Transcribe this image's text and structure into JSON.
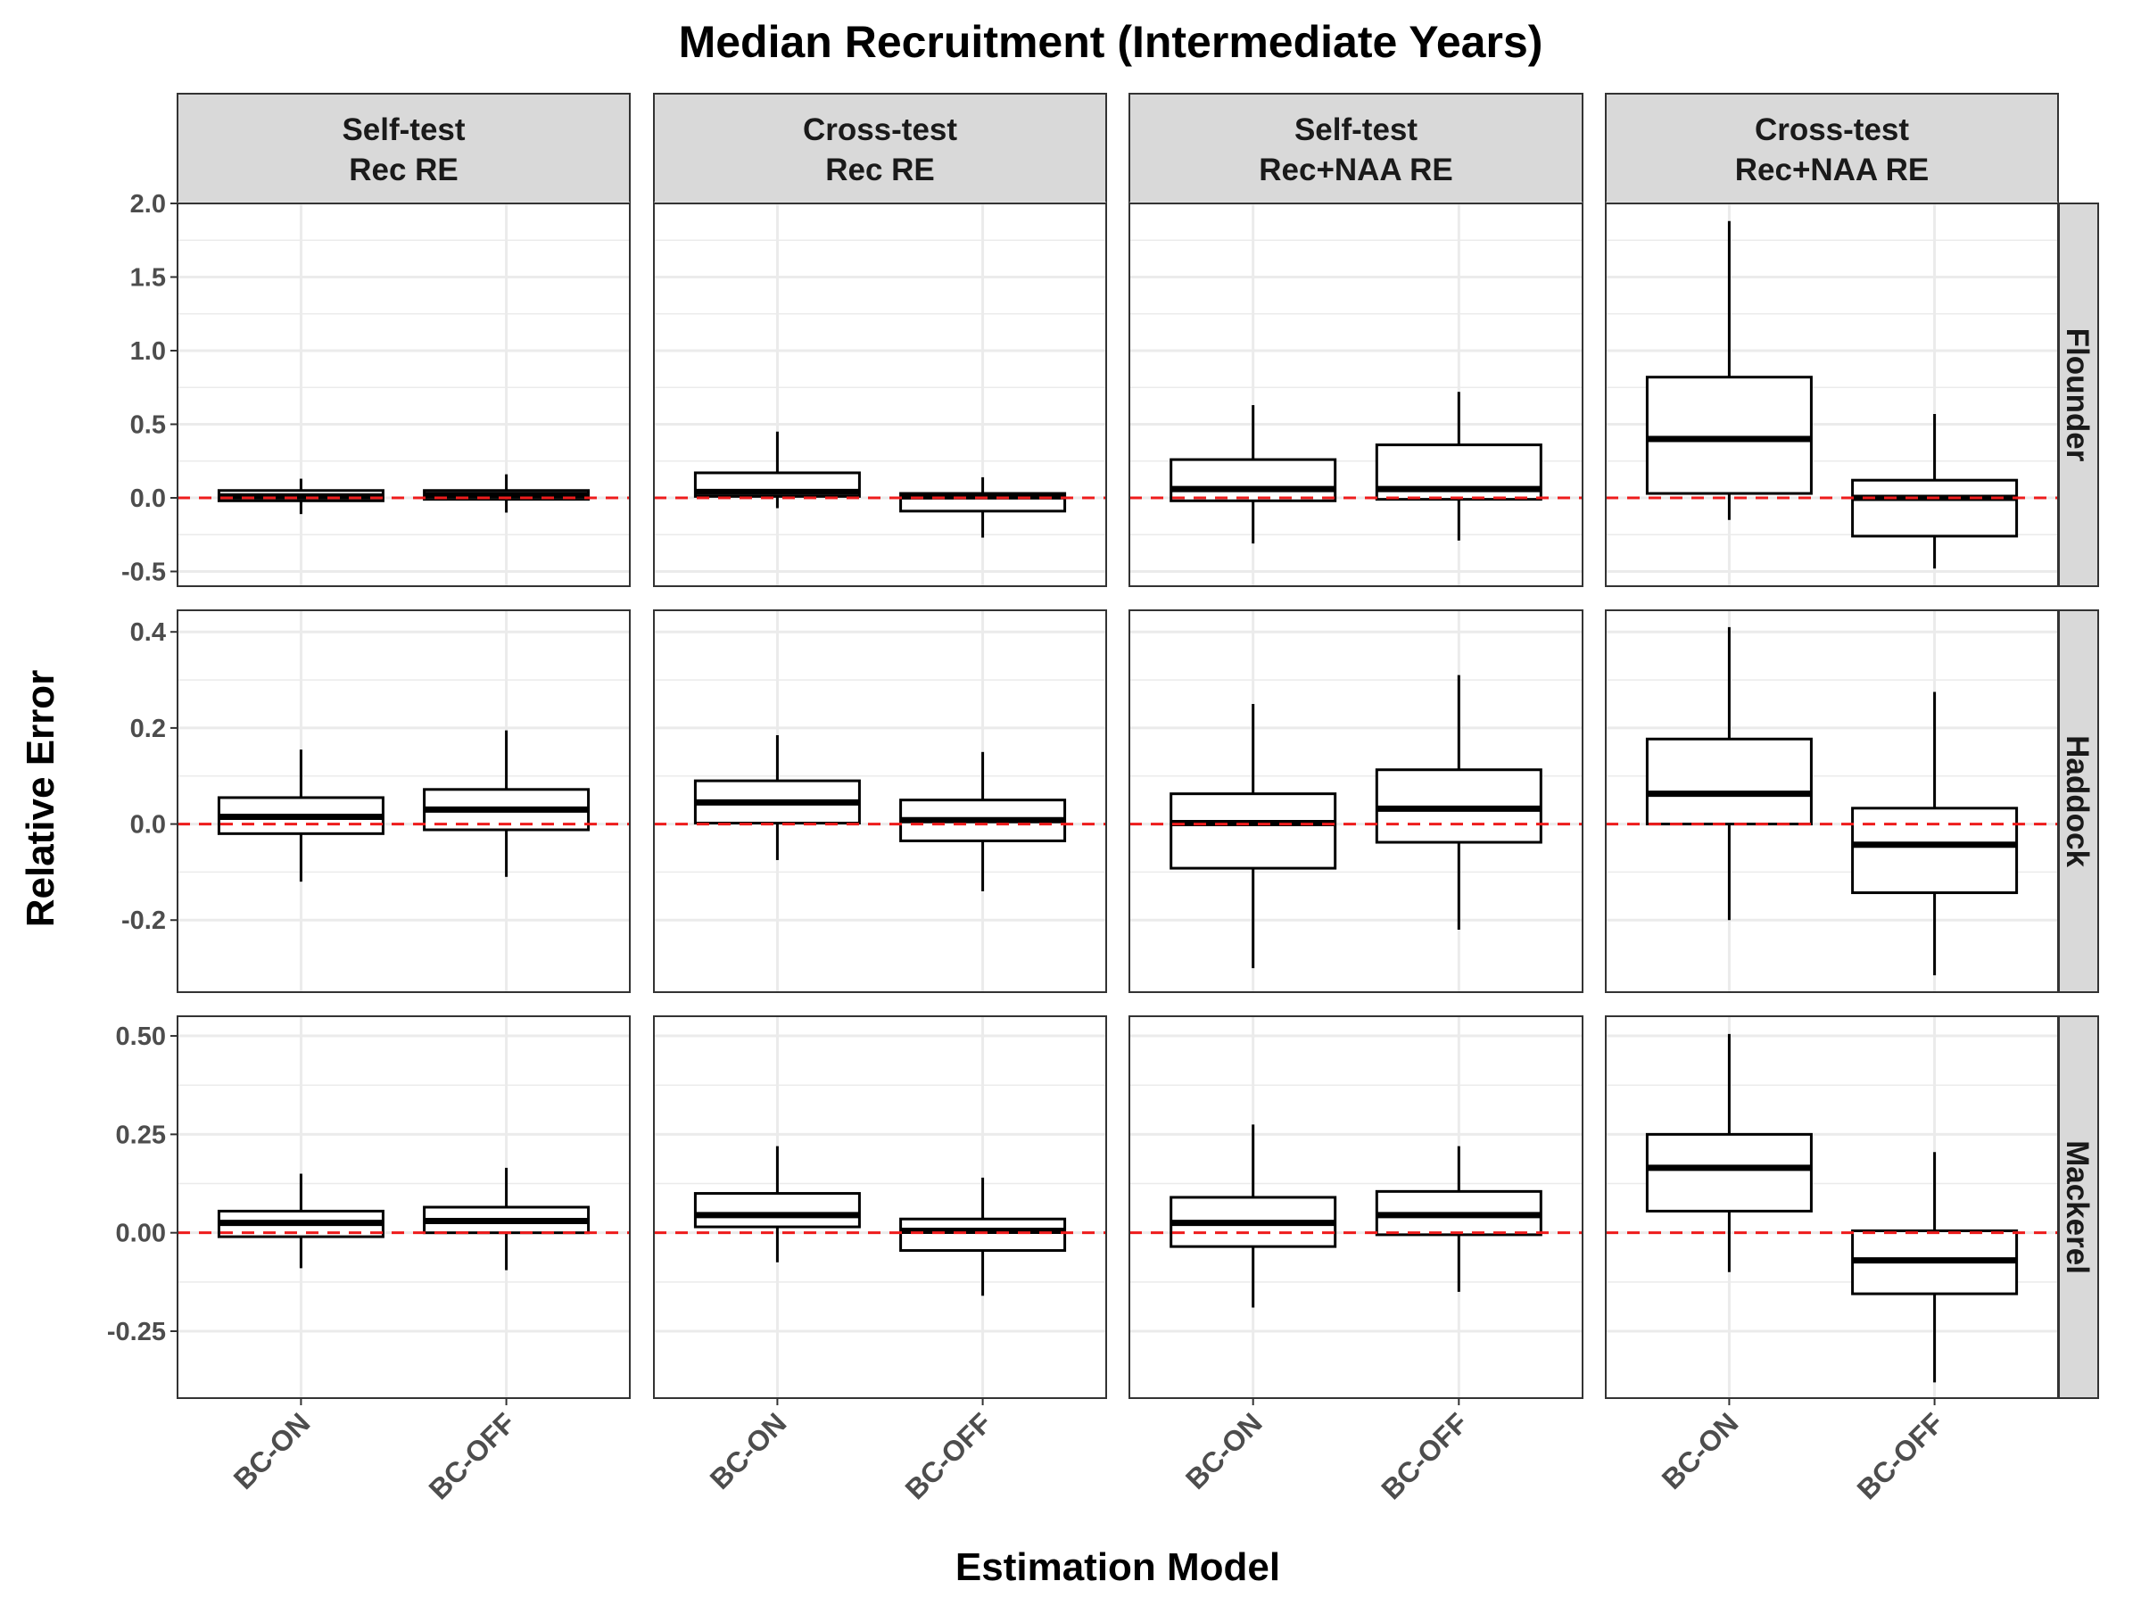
{
  "chart_data": {
    "type": "boxplot",
    "title": "Median Recruitment (Intermediate Years)",
    "xlabel": "Estimation Model",
    "ylabel": "Relative Error",
    "categories": [
      "BC-ON",
      "BC-OFF"
    ],
    "columns": [
      [
        "Self-test",
        "Rec RE"
      ],
      [
        "Cross-test",
        "Rec RE"
      ],
      [
        "Self-test",
        "Rec+NAA RE"
      ],
      [
        "Cross-test",
        "Rec+NAA RE"
      ]
    ],
    "rows": [
      {
        "name": "Flounder",
        "ylim": [
          -0.6,
          2.0
        ],
        "ticks": [
          "-0.5",
          "0.0",
          "0.5",
          "1.0",
          "1.5",
          "2.0"
        ],
        "panels": [
          [
            {
              "wlo": -0.11,
              "q1": -0.02,
              "med": 0.01,
              "q3": 0.05,
              "whi": 0.13
            },
            {
              "wlo": -0.1,
              "q1": -0.01,
              "med": 0.02,
              "q3": 0.05,
              "whi": 0.16
            }
          ],
          [
            {
              "wlo": -0.07,
              "q1": 0.01,
              "med": 0.04,
              "q3": 0.17,
              "whi": 0.45
            },
            {
              "wlo": -0.27,
              "q1": -0.09,
              "med": 0.01,
              "q3": 0.03,
              "whi": 0.14
            }
          ],
          [
            {
              "wlo": -0.31,
              "q1": -0.02,
              "med": 0.06,
              "q3": 0.26,
              "whi": 0.63
            },
            {
              "wlo": -0.29,
              "q1": -0.01,
              "med": 0.06,
              "q3": 0.36,
              "whi": 0.72
            }
          ],
          [
            {
              "wlo": -0.15,
              "q1": 0.03,
              "med": 0.4,
              "q3": 0.82,
              "whi": 1.88
            },
            {
              "wlo": -0.48,
              "q1": -0.26,
              "med": 0.0,
              "q3": 0.12,
              "whi": 0.57
            }
          ]
        ]
      },
      {
        "name": "Haddock",
        "ylim": [
          -0.35,
          0.445
        ],
        "ticks": [
          "-0.2",
          "0.0",
          "0.2",
          "0.4"
        ],
        "panels": [
          [
            {
              "wlo": -0.12,
              "q1": -0.02,
              "med": 0.015,
              "q3": 0.055,
              "whi": 0.155
            },
            {
              "wlo": -0.11,
              "q1": -0.012,
              "med": 0.03,
              "q3": 0.072,
              "whi": 0.195
            }
          ],
          [
            {
              "wlo": -0.075,
              "q1": 0.002,
              "med": 0.045,
              "q3": 0.09,
              "whi": 0.185
            },
            {
              "wlo": -0.14,
              "q1": -0.035,
              "med": 0.008,
              "q3": 0.05,
              "whi": 0.15
            }
          ],
          [
            {
              "wlo": -0.3,
              "q1": -0.092,
              "med": 0.002,
              "q3": 0.063,
              "whi": 0.25
            },
            {
              "wlo": -0.22,
              "q1": -0.038,
              "med": 0.032,
              "q3": 0.113,
              "whi": 0.31
            }
          ],
          [
            {
              "wlo": -0.2,
              "q1": 0.0,
              "med": 0.063,
              "q3": 0.177,
              "whi": 0.41
            },
            {
              "wlo": -0.315,
              "q1": -0.143,
              "med": -0.043,
              "q3": 0.033,
              "whi": 0.275
            }
          ]
        ]
      },
      {
        "name": "Mackerel",
        "ylim": [
          -0.42,
          0.55
        ],
        "ticks": [
          "-0.25",
          "0.00",
          "0.25",
          "0.50"
        ],
        "panels": [
          [
            {
              "wlo": -0.09,
              "q1": -0.01,
              "med": 0.025,
              "q3": 0.055,
              "whi": 0.15
            },
            {
              "wlo": -0.095,
              "q1": 0.0,
              "med": 0.03,
              "q3": 0.065,
              "whi": 0.165
            }
          ],
          [
            {
              "wlo": -0.075,
              "q1": 0.015,
              "med": 0.045,
              "q3": 0.1,
              "whi": 0.22
            },
            {
              "wlo": -0.16,
              "q1": -0.045,
              "med": 0.005,
              "q3": 0.035,
              "whi": 0.14
            }
          ],
          [
            {
              "wlo": -0.19,
              "q1": -0.035,
              "med": 0.025,
              "q3": 0.09,
              "whi": 0.275
            },
            {
              "wlo": -0.15,
              "q1": -0.005,
              "med": 0.045,
              "q3": 0.105,
              "whi": 0.22
            }
          ],
          [
            {
              "wlo": -0.1,
              "q1": 0.055,
              "med": 0.165,
              "q3": 0.25,
              "whi": 0.505
            },
            {
              "wlo": -0.38,
              "q1": -0.155,
              "med": -0.07,
              "q3": 0.005,
              "whi": 0.205
            }
          ]
        ]
      }
    ],
    "reference_line": {
      "y": 0,
      "color": "#ee1c1c",
      "style": "dashed"
    },
    "grid": true,
    "colors": {
      "strip_bg": "#d9d9d9",
      "grid": "#ebebeb",
      "box_fill": "#ffffff",
      "box_stroke": "#000000"
    }
  }
}
